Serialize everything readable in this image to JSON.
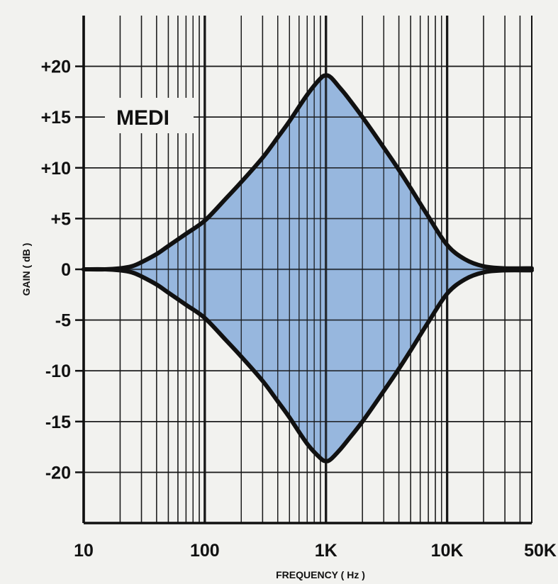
{
  "chart_data": {
    "type": "area",
    "xlabel": "FREQUENCY ( Hz )",
    "ylabel": "GAIN ( dB )",
    "x_scale": "log",
    "xlim": [
      10,
      50000
    ],
    "ylim": [
      -25,
      25
    ],
    "x_ticks": [
      {
        "value": 10,
        "label": "10"
      },
      {
        "value": 100,
        "label": "100"
      },
      {
        "value": 1000,
        "label": "1K"
      },
      {
        "value": 10000,
        "label": "10K"
      },
      {
        "value": 50000,
        "label": "50K"
      }
    ],
    "y_ticks": [
      {
        "value": 20,
        "label": "+20"
      },
      {
        "value": 15,
        "label": "+15"
      },
      {
        "value": 10,
        "label": "+10"
      },
      {
        "value": 5,
        "label": "+5"
      },
      {
        "value": 0,
        "label": "0"
      },
      {
        "value": -5,
        "label": "-5"
      },
      {
        "value": -10,
        "label": "-10"
      },
      {
        "value": -15,
        "label": "-15"
      },
      {
        "value": -20,
        "label": "-20"
      }
    ],
    "grid": true,
    "annotation": "MEDI",
    "fill_color": "#7ea7d8",
    "line_color": "#111111",
    "series": [
      {
        "x": [
          10,
          15,
          20,
          25,
          30,
          40,
          50,
          70,
          100,
          150,
          200,
          300,
          400,
          500,
          700,
          900,
          1000,
          1100,
          1300,
          1500,
          2000,
          3000,
          4000,
          5000,
          7000,
          10000,
          14000,
          20000,
          30000,
          50000
        ],
        "values": [
          0,
          0,
          0.1,
          0.3,
          0.7,
          1.5,
          2.3,
          3.5,
          4.8,
          7.0,
          8.6,
          11.0,
          13.0,
          14.6,
          17.2,
          18.8,
          19.1,
          18.9,
          17.9,
          17.0,
          15.0,
          12.0,
          9.8,
          8.0,
          5.2,
          2.4,
          1.0,
          0.3,
          0.1,
          0.1
        ]
      },
      {
        "x": [
          10,
          15,
          20,
          25,
          30,
          40,
          50,
          70,
          100,
          150,
          200,
          300,
          400,
          500,
          700,
          900,
          1000,
          1100,
          1300,
          1500,
          2000,
          3000,
          4000,
          5000,
          7000,
          10000,
          14000,
          20000,
          30000,
          50000
        ],
        "values": [
          0,
          0,
          -0.1,
          -0.3,
          -0.7,
          -1.5,
          -2.3,
          -3.5,
          -4.8,
          -7.0,
          -8.6,
          -11.0,
          -13.0,
          -14.6,
          -17.2,
          -18.6,
          -18.9,
          -18.7,
          -17.8,
          -16.9,
          -15.0,
          -12.0,
          -9.8,
          -8.0,
          -5.2,
          -2.4,
          -1.0,
          -0.3,
          -0.1,
          -0.1
        ]
      }
    ]
  }
}
